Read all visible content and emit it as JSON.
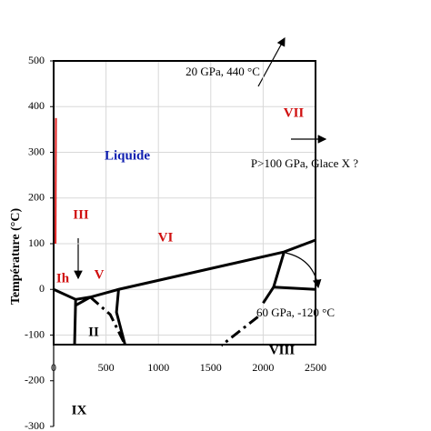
{
  "chart_data": {
    "type": "line",
    "y_label": "Température (°C)",
    "xlim": [
      0,
      2500
    ],
    "ylim": [
      -300,
      500
    ],
    "xticks": [
      0,
      500,
      1000,
      1500,
      2000,
      2500
    ],
    "yticks": [
      -300,
      -200,
      -100,
      0,
      100,
      200,
      300,
      400,
      500
    ],
    "grid": true,
    "series": [
      {
        "color": "#e02020",
        "x": [
          22,
          18
        ],
        "values": [
          375,
          100
        ]
      },
      {
        "color": "#000000",
        "x": [
          0,
          210
        ],
        "values": [
          0,
          -22
        ]
      },
      {
        "color": "#000000",
        "x": [
          210,
          350,
          620,
          2200,
          2500
        ],
        "values": [
          -22,
          -17,
          0,
          82,
          108
        ]
      },
      {
        "color": "#000000",
        "x": [
          210,
          200
        ],
        "values": [
          -22,
          -120
        ]
      },
      {
        "color": "#000000",
        "x": [
          210,
          350
        ],
        "values": [
          -35,
          -17
        ]
      },
      {
        "color": "#000000",
        "style": "dashed",
        "x": [
          350,
          540,
          680
        ],
        "values": [
          -17,
          -55,
          -120
        ]
      },
      {
        "color": "#000000",
        "x": [
          620,
          600,
          680
        ],
        "values": [
          0,
          -50,
          -120
        ]
      },
      {
        "color": "#000000",
        "x": [
          2200,
          2100
        ],
        "values": [
          82,
          5
        ]
      },
      {
        "color": "#000000",
        "x": [
          2100,
          2500
        ],
        "values": [
          5,
          0
        ]
      },
      {
        "color": "#000000",
        "x": [
          2100,
          2000
        ],
        "values": [
          5,
          -30
        ]
      },
      {
        "color": "#000000",
        "style": "dashed",
        "x": [
          1950,
          1600
        ],
        "values": [
          -60,
          -123
        ]
      }
    ],
    "annotations": [
      {
        "text": "20 GPa, 440 °C",
        "color": "#000000"
      },
      {
        "text": "VII",
        "color": "#d01010"
      },
      {
        "text": "Liquide",
        "color": "#1020b0"
      },
      {
        "text": "P>100 GPa, Glace X ?",
        "color": "#000000"
      },
      {
        "text": "III",
        "color": "#d01010"
      },
      {
        "text": "VI",
        "color": "#d01010"
      },
      {
        "text": "Ih",
        "color": "#d01010"
      },
      {
        "text": "V",
        "color": "#d01010"
      },
      {
        "text": "II",
        "color": "#000000"
      },
      {
        "text": "60 GPa, -120 °C",
        "color": "#000000"
      },
      {
        "text": "VIII",
        "color": "#000000"
      },
      {
        "text": "IX",
        "color": "#000000"
      }
    ]
  }
}
